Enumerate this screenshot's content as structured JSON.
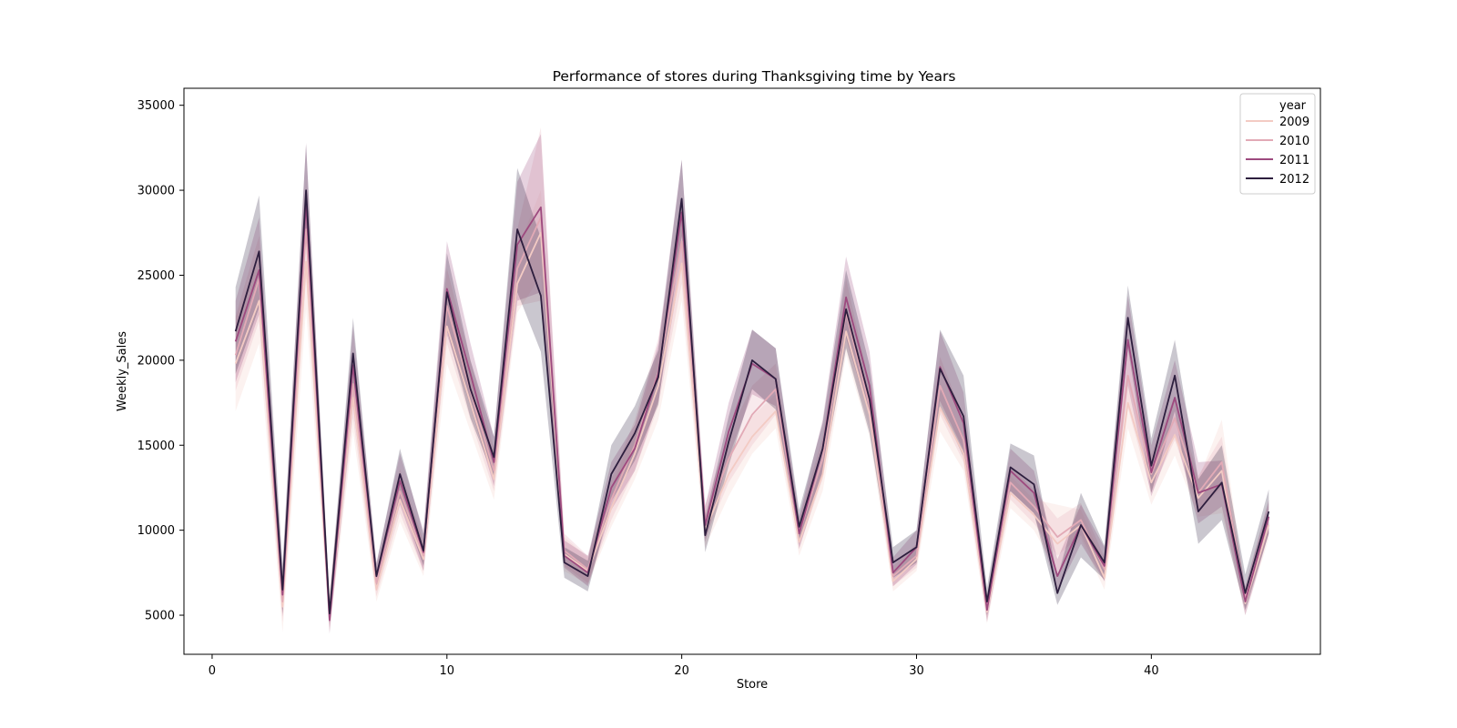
{
  "chart_data": {
    "type": "line",
    "title": "Performance of stores during Thanksgiving time by Years",
    "xlabel": "Store",
    "ylabel": "Weekly_Sales",
    "xlim": [
      -1.2,
      47.2
    ],
    "ylim": [
      2700,
      36000
    ],
    "xticks": [
      0,
      10,
      20,
      30,
      40
    ],
    "yticks": [
      5000,
      10000,
      15000,
      20000,
      25000,
      30000,
      35000
    ],
    "grid": false,
    "legend": {
      "title": "year",
      "position": "top-right"
    },
    "x": [
      1,
      2,
      3,
      4,
      5,
      6,
      7,
      8,
      9,
      10,
      11,
      12,
      13,
      14,
      15,
      16,
      17,
      18,
      19,
      20,
      21,
      22,
      23,
      24,
      25,
      26,
      27,
      28,
      29,
      30,
      31,
      32,
      33,
      34,
      35,
      36,
      37,
      38,
      39,
      40,
      41,
      42,
      43,
      44,
      45
    ],
    "series": [
      {
        "name": "2009",
        "color": "#f3cbc4",
        "values": [
          19800,
          23500,
          5500,
          25800,
          5000,
          17800,
          6500,
          11800,
          8300,
          22000,
          17500,
          13000,
          24500,
          27500,
          8600,
          7600,
          11300,
          14500,
          18500,
          25700,
          10000,
          13300,
          15500,
          17000,
          9300,
          13300,
          21700,
          16800,
          7000,
          8300,
          17200,
          14500,
          5200,
          12200,
          10900,
          9200,
          10300,
          7200,
          17500,
          12800,
          15600,
          11900,
          13500,
          5700,
          10300
        ],
        "band": [
          [
            17000,
            22500
          ],
          [
            21000,
            26000
          ],
          [
            4000,
            6900
          ],
          [
            23000,
            28800
          ],
          [
            4000,
            6300
          ],
          [
            15800,
            19900
          ],
          [
            5800,
            7300
          ],
          [
            10500,
            13200
          ],
          [
            7300,
            9300
          ],
          [
            19800,
            24300
          ],
          [
            15800,
            19400
          ],
          [
            11800,
            14300
          ],
          [
            22800,
            26500
          ],
          [
            25000,
            30000
          ],
          [
            7600,
            9600
          ],
          [
            6800,
            8400
          ],
          [
            10200,
            12500
          ],
          [
            13000,
            16000
          ],
          [
            16500,
            20500
          ],
          [
            23500,
            28000
          ],
          [
            9000,
            11000
          ],
          [
            12000,
            14500
          ],
          [
            14500,
            16700
          ],
          [
            16000,
            18000
          ],
          [
            8500,
            10200
          ],
          [
            12300,
            14300
          ],
          [
            20300,
            23200
          ],
          [
            15500,
            18100
          ],
          [
            6400,
            7600
          ],
          [
            7600,
            9000
          ],
          [
            15800,
            18600
          ],
          [
            13500,
            15500
          ],
          [
            4500,
            5900
          ],
          [
            11300,
            13200
          ],
          [
            10000,
            11800
          ],
          [
            7500,
            11500
          ],
          [
            9500,
            11200
          ],
          [
            6500,
            8000
          ],
          [
            16000,
            19000
          ],
          [
            11500,
            14000
          ],
          [
            14400,
            16800
          ],
          [
            10800,
            13000
          ],
          [
            11000,
            16500
          ],
          [
            5000,
            6400
          ],
          [
            9500,
            11100
          ]
        ]
      },
      {
        "name": "2010",
        "color": "#e2aab6",
        "values": [
          20300,
          24800,
          5800,
          27700,
          5200,
          18600,
          6900,
          12300,
          8500,
          23200,
          18200,
          13500,
          25400,
          28400,
          8800,
          7700,
          11800,
          15000,
          19300,
          27000,
          10500,
          14200,
          16800,
          18300,
          9800,
          14200,
          22800,
          17300,
          7300,
          8500,
          18500,
          15300,
          5500,
          12800,
          11400,
          9600,
          10600,
          7700,
          19100,
          13300,
          16600,
          12200,
          14000,
          6000,
          10700
        ],
        "band": [
          [
            18200,
            22600
          ],
          [
            22300,
            27300
          ],
          [
            4600,
            7000
          ],
          [
            24800,
            30600
          ],
          [
            4300,
            6200
          ],
          [
            16600,
            20500
          ],
          [
            6100,
            7700
          ],
          [
            11000,
            13600
          ],
          [
            7600,
            9400
          ],
          [
            21000,
            25400
          ],
          [
            16500,
            20000
          ],
          [
            12300,
            14800
          ],
          [
            23200,
            27700
          ],
          [
            23500,
            33700
          ],
          [
            7900,
            9800
          ],
          [
            6900,
            8500
          ],
          [
            10600,
            13000
          ],
          [
            13500,
            16500
          ],
          [
            17300,
            21300
          ],
          [
            24500,
            29500
          ],
          [
            9500,
            11500
          ],
          [
            12800,
            15600
          ],
          [
            15000,
            18500
          ],
          [
            16800,
            19800
          ],
          [
            9000,
            10700
          ],
          [
            13000,
            15500
          ],
          [
            20800,
            24800
          ],
          [
            16000,
            18600
          ],
          [
            6700,
            7900
          ],
          [
            7800,
            9200
          ],
          [
            16800,
            20200
          ],
          [
            14000,
            16600
          ],
          [
            4800,
            6200
          ],
          [
            11800,
            13800
          ],
          [
            10400,
            12400
          ],
          [
            8500,
            10700
          ],
          [
            9700,
            11600
          ],
          [
            7000,
            8400
          ],
          [
            17200,
            21000
          ],
          [
            12200,
            14500
          ],
          [
            15300,
            17900
          ],
          [
            11200,
            13200
          ],
          [
            12500,
            15500
          ],
          [
            5400,
            6600
          ],
          [
            9800,
            11600
          ]
        ]
      },
      {
        "name": "2011",
        "color": "#9d4a7f",
        "values": [
          21100,
          25300,
          6200,
          29300,
          4700,
          19700,
          7300,
          12900,
          8700,
          24200,
          19200,
          14000,
          26800,
          29000,
          8500,
          7500,
          12500,
          14800,
          19200,
          28700,
          10300,
          15800,
          19800,
          18900,
          9800,
          14800,
          23700,
          18500,
          7500,
          9000,
          19600,
          16300,
          5300,
          13500,
          12200,
          7300,
          10300,
          7900,
          21200,
          13400,
          17800,
          12200,
          12700,
          5800,
          10800
        ],
        "band": [
          [
            18700,
            23500
          ],
          [
            22700,
            28400
          ],
          [
            4900,
            7700
          ],
          [
            27000,
            32800
          ],
          [
            3900,
            5600
          ],
          [
            17300,
            22000
          ],
          [
            6500,
            8100
          ],
          [
            11500,
            14500
          ],
          [
            7600,
            10000
          ],
          [
            21500,
            27000
          ],
          [
            17300,
            21000
          ],
          [
            12600,
            15500
          ],
          [
            23500,
            30500
          ],
          [
            24000,
            33300
          ],
          [
            7800,
            9400
          ],
          [
            6700,
            8500
          ],
          [
            11200,
            14000
          ],
          [
            13500,
            16200
          ],
          [
            17600,
            21000
          ],
          [
            25700,
            31800
          ],
          [
            9300,
            11400
          ],
          [
            14300,
            17500
          ],
          [
            18000,
            21800
          ],
          [
            17300,
            20700
          ],
          [
            8900,
            10800
          ],
          [
            13300,
            16500
          ],
          [
            21300,
            26100
          ],
          [
            16700,
            20500
          ],
          [
            6700,
            8400
          ],
          [
            8000,
            10000
          ],
          [
            17600,
            21700
          ],
          [
            14700,
            18100
          ],
          [
            4600,
            6100
          ],
          [
            12300,
            14800
          ],
          [
            11000,
            13500
          ],
          [
            6400,
            8300
          ],
          [
            9200,
            11500
          ],
          [
            7000,
            9000
          ],
          [
            18500,
            23800
          ],
          [
            12000,
            15000
          ],
          [
            15700,
            20000
          ],
          [
            10400,
            14000
          ],
          [
            11400,
            14100
          ],
          [
            5000,
            6700
          ],
          [
            9800,
            11800
          ]
        ]
      },
      {
        "name": "2012",
        "color": "#2d1e3e",
        "values": [
          21700,
          26400,
          6500,
          30000,
          5100,
          20400,
          7300,
          13300,
          8800,
          24000,
          18300,
          14300,
          27700,
          23800,
          8100,
          7300,
          13300,
          15700,
          19000,
          29500,
          9700,
          15200,
          20000,
          18900,
          10200,
          14800,
          23000,
          17700,
          8100,
          9000,
          19500,
          16700,
          5800,
          13700,
          12700,
          6300,
          10300,
          8100,
          22500,
          13800,
          19100,
          11100,
          12800,
          6300,
          11100
        ],
        "band": [
          [
            19200,
            24300
          ],
          [
            23100,
            29700
          ],
          [
            5100,
            8000
          ],
          [
            27500,
            32700
          ],
          [
            4500,
            5900
          ],
          [
            18300,
            22500
          ],
          [
            6600,
            8000
          ],
          [
            11900,
            14800
          ],
          [
            7900,
            9800
          ],
          [
            21800,
            26300
          ],
          [
            16600,
            20000
          ],
          [
            13100,
            15500
          ],
          [
            24000,
            31300
          ],
          [
            20500,
            27200
          ],
          [
            7200,
            9000
          ],
          [
            6400,
            8200
          ],
          [
            11700,
            15000
          ],
          [
            14100,
            17300
          ],
          [
            17400,
            20600
          ],
          [
            27300,
            31800
          ],
          [
            8700,
            10700
          ],
          [
            13800,
            16700
          ],
          [
            18300,
            21800
          ],
          [
            17100,
            20700
          ],
          [
            9200,
            11200
          ],
          [
            13300,
            16300
          ],
          [
            20700,
            25300
          ],
          [
            15700,
            19700
          ],
          [
            7200,
            9000
          ],
          [
            8100,
            10000
          ],
          [
            17300,
            21800
          ],
          [
            14300,
            19100
          ],
          [
            5000,
            6600
          ],
          [
            12300,
            15100
          ],
          [
            11000,
            14400
          ],
          [
            5600,
            7200
          ],
          [
            8400,
            12200
          ],
          [
            7100,
            9100
          ],
          [
            20700,
            24400
          ],
          [
            12200,
            15400
          ],
          [
            17000,
            21200
          ],
          [
            9200,
            13000
          ],
          [
            10600,
            15000
          ],
          [
            5300,
            7400
          ],
          [
            9800,
            12400
          ]
        ]
      }
    ]
  }
}
